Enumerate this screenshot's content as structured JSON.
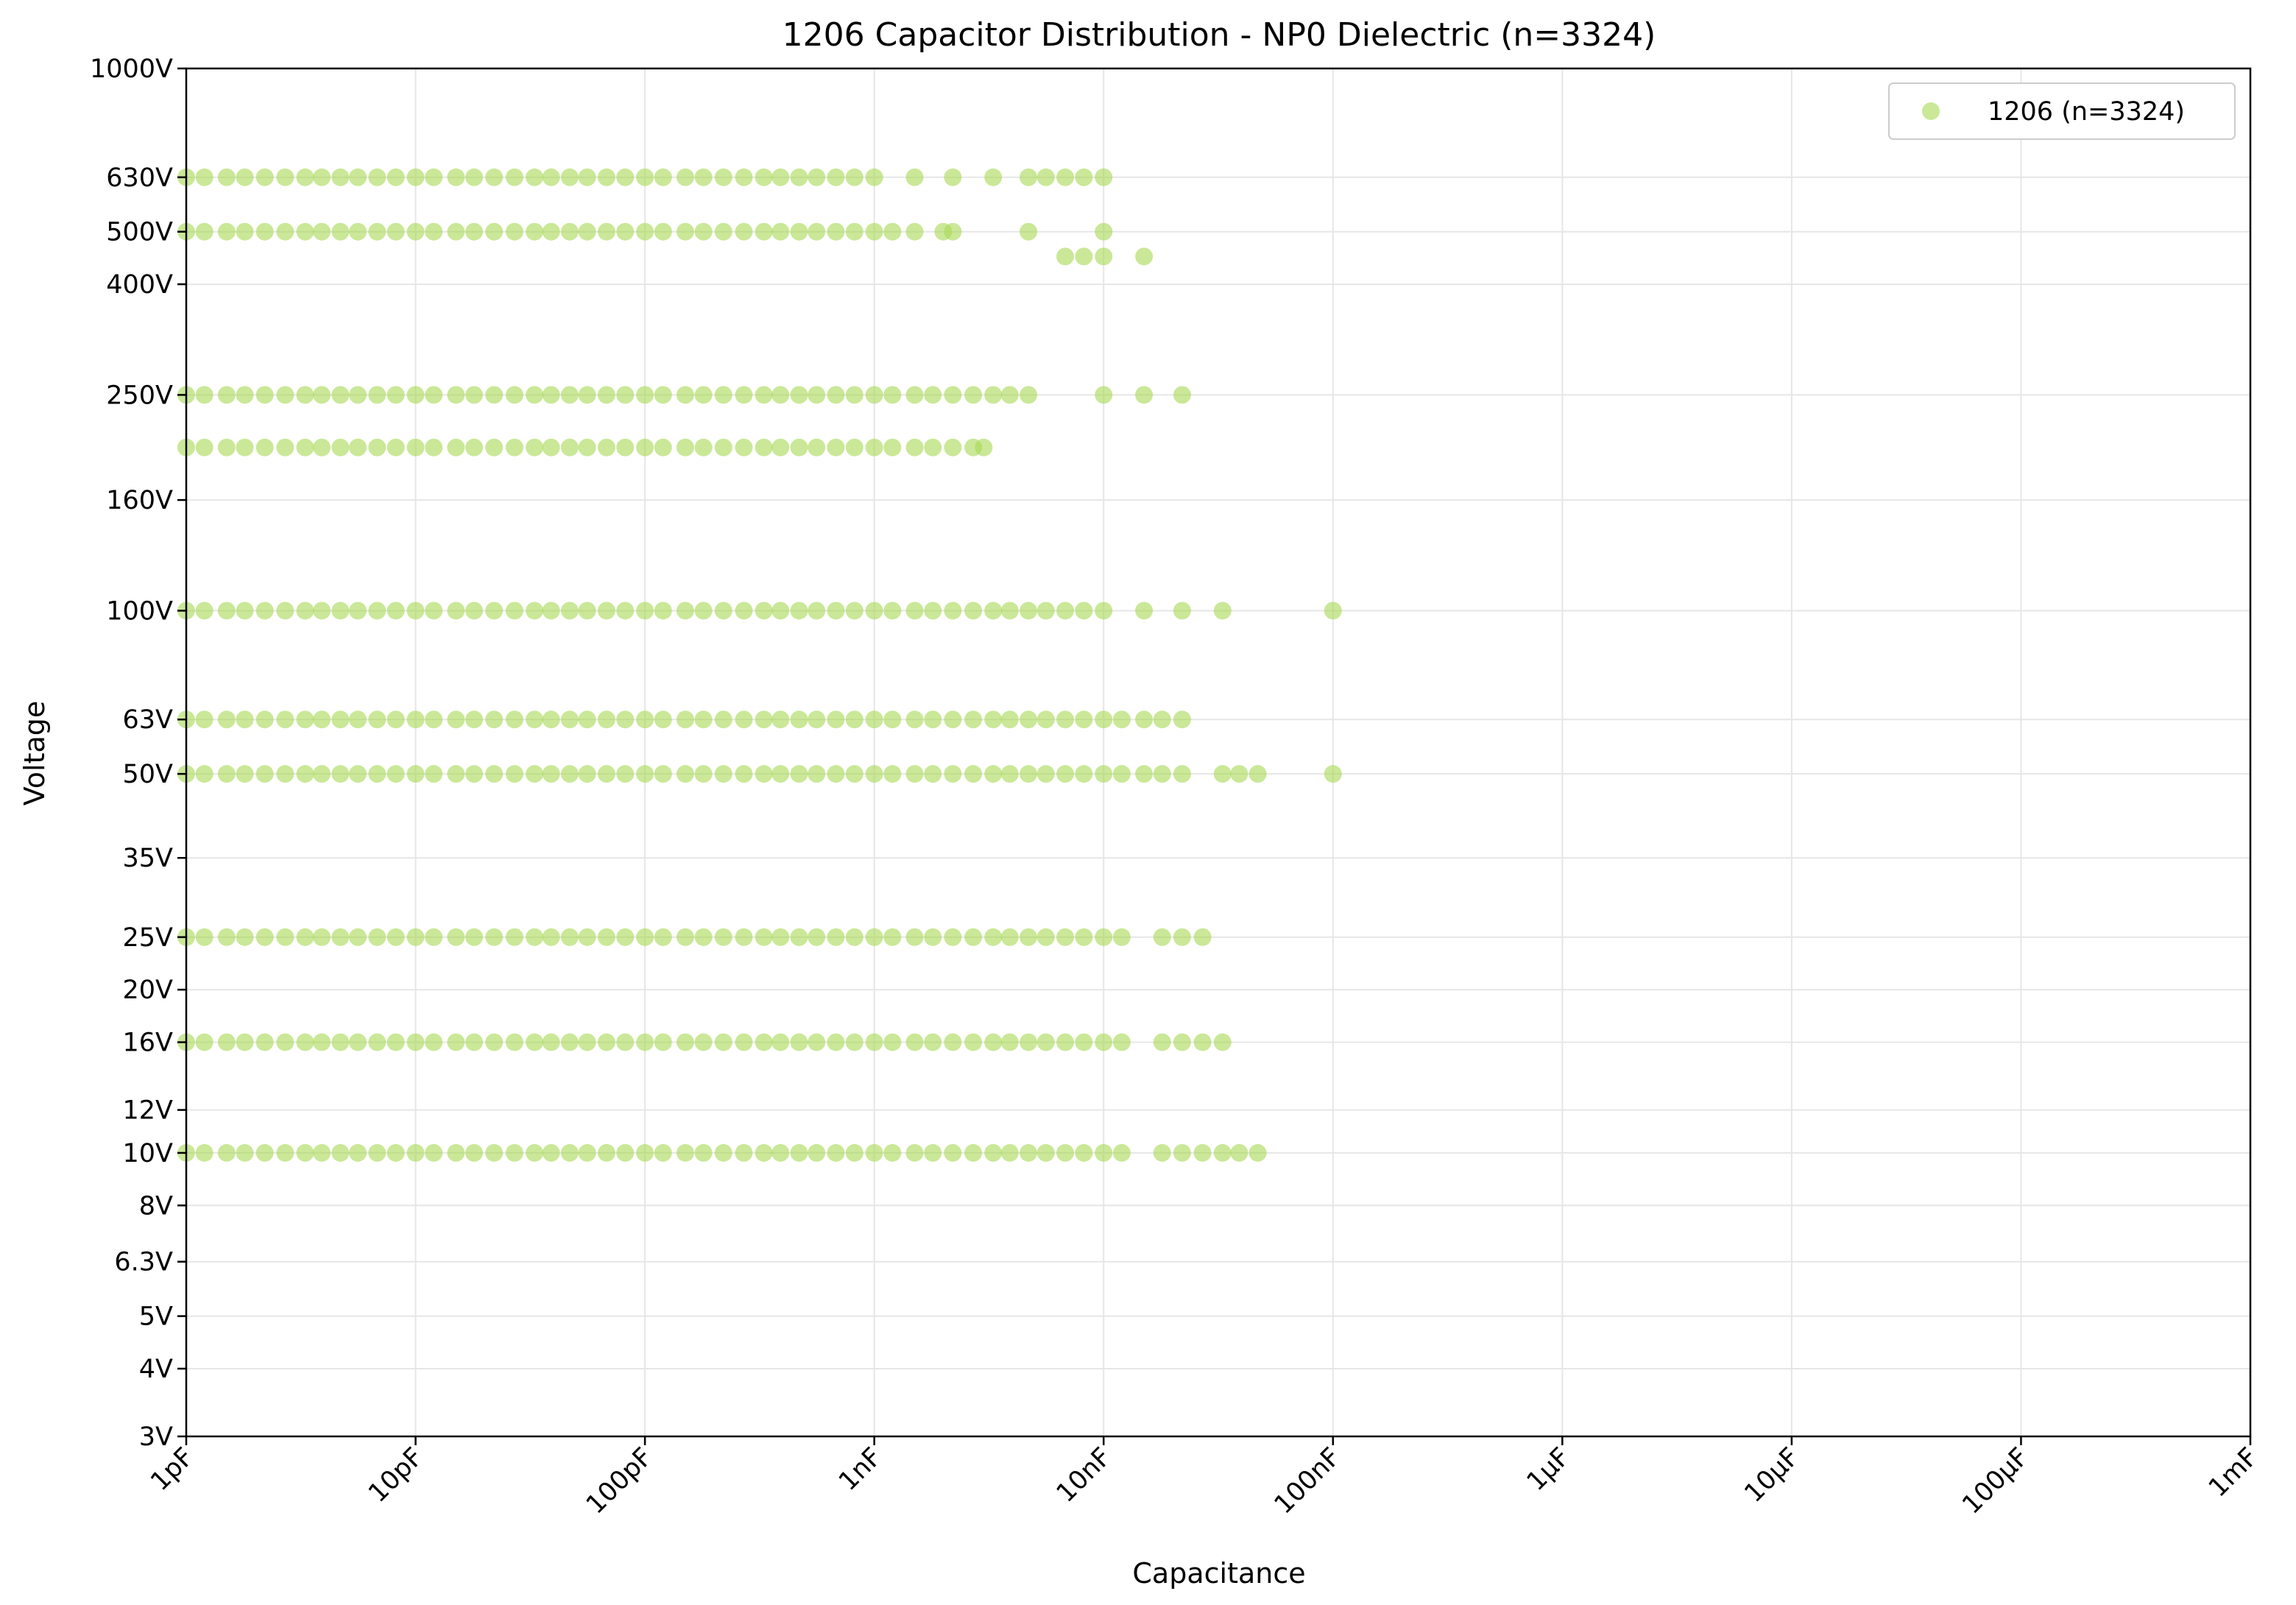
{
  "chart_data": {
    "type": "scatter",
    "title": "1206 Capacitor Distribution - NP0 Dielectric (n=3324)",
    "xlabel": "Capacitance",
    "ylabel": "Voltage",
    "x_scale": "log",
    "y_scale": "log",
    "xlim": [
      "1pF",
      "1mF"
    ],
    "ylim": [
      "3V",
      "1000V"
    ],
    "grid": true,
    "legend_position": "top-right",
    "x_ticks": [
      {
        "value_pF": 1,
        "label": "1pF"
      },
      {
        "value_pF": 10,
        "label": "10pF"
      },
      {
        "value_pF": 100,
        "label": "100pF"
      },
      {
        "value_pF": 1000,
        "label": "1nF"
      },
      {
        "value_pF": 10000,
        "label": "10nF"
      },
      {
        "value_pF": 100000,
        "label": "100nF"
      },
      {
        "value_pF": 1000000,
        "label": "1µF"
      },
      {
        "value_pF": 10000000,
        "label": "10µF"
      },
      {
        "value_pF": 100000000,
        "label": "100µF"
      },
      {
        "value_pF": 1000000000,
        "label": "1mF"
      }
    ],
    "y_ticks": [
      {
        "value_V": 3,
        "label": "3V"
      },
      {
        "value_V": 4,
        "label": "4V"
      },
      {
        "value_V": 5,
        "label": "5V"
      },
      {
        "value_V": 6.3,
        "label": "6.3V"
      },
      {
        "value_V": 8,
        "label": "8V"
      },
      {
        "value_V": 10,
        "label": "10V"
      },
      {
        "value_V": 12,
        "label": "12V"
      },
      {
        "value_V": 16,
        "label": "16V"
      },
      {
        "value_V": 20,
        "label": "20V"
      },
      {
        "value_V": 25,
        "label": "25V"
      },
      {
        "value_V": 35,
        "label": "35V"
      },
      {
        "value_V": 50,
        "label": "50V"
      },
      {
        "value_V": 63,
        "label": "63V"
      },
      {
        "value_V": 100,
        "label": "100V"
      },
      {
        "value_V": 160,
        "label": "160V"
      },
      {
        "value_V": 250,
        "label": "250V"
      },
      {
        "value_V": 400,
        "label": "400V"
      },
      {
        "value_V": 500,
        "label": "500V"
      },
      {
        "value_V": 630,
        "label": "630V"
      },
      {
        "value_V": 1000,
        "label": "1000V"
      }
    ],
    "series": [
      {
        "name": "1206 (n=3324)",
        "color": "#a6d854",
        "opacity": 0.6,
        "marker": "circle",
        "x_unit": "pF",
        "y_unit": "V",
        "rows": [
          {
            "voltage": 630,
            "capacitance_pF": [
              1,
              1.2,
              1.5,
              1.8,
              2.2,
              2.7,
              3.3,
              3.9,
              4.7,
              5.6,
              6.8,
              8.2,
              10,
              12,
              15,
              18,
              22,
              27,
              33,
              39,
              47,
              56,
              68,
              82,
              100,
              120,
              150,
              180,
              220,
              270,
              330,
              390,
              470,
              560,
              680,
              820,
              1000,
              1500,
              2200,
              3300,
              4700,
              5600,
              6800,
              8200,
              10000
            ]
          },
          {
            "voltage": 500,
            "capacitance_pF": [
              1,
              1.2,
              1.5,
              1.8,
              2.2,
              2.7,
              3.3,
              3.9,
              4.7,
              5.6,
              6.8,
              8.2,
              10,
              12,
              15,
              18,
              22,
              27,
              33,
              39,
              47,
              56,
              68,
              82,
              100,
              120,
              150,
              180,
              220,
              270,
              330,
              390,
              470,
              560,
              680,
              820,
              1000,
              1200,
              1500,
              2000,
              2200,
              4700,
              10000
            ]
          },
          {
            "voltage": 450,
            "capacitance_pF": [
              6800,
              8200,
              10000,
              15000
            ]
          },
          {
            "voltage": 250,
            "capacitance_pF": [
              1,
              1.2,
              1.5,
              1.8,
              2.2,
              2.7,
              3.3,
              3.9,
              4.7,
              5.6,
              6.8,
              8.2,
              10,
              12,
              15,
              18,
              22,
              27,
              33,
              39,
              47,
              56,
              68,
              82,
              100,
              120,
              150,
              180,
              220,
              270,
              330,
              390,
              470,
              560,
              680,
              820,
              1000,
              1200,
              1500,
              1800,
              2200,
              2700,
              3300,
              3900,
              4700,
              10000,
              15000,
              22000
            ]
          },
          {
            "voltage": 200,
            "capacitance_pF": [
              1,
              1.2,
              1.5,
              1.8,
              2.2,
              2.7,
              3.3,
              3.9,
              4.7,
              5.6,
              6.8,
              8.2,
              10,
              12,
              15,
              18,
              22,
              27,
              33,
              39,
              47,
              56,
              68,
              82,
              100,
              120,
              150,
              180,
              220,
              270,
              330,
              390,
              470,
              560,
              680,
              820,
              1000,
              1200,
              1500,
              1800,
              2200,
              2700,
              3000
            ]
          },
          {
            "voltage": 100,
            "capacitance_pF": [
              1,
              1.2,
              1.5,
              1.8,
              2.2,
              2.7,
              3.3,
              3.9,
              4.7,
              5.6,
              6.8,
              8.2,
              10,
              12,
              15,
              18,
              22,
              27,
              33,
              39,
              47,
              56,
              68,
              82,
              100,
              120,
              150,
              180,
              220,
              270,
              330,
              390,
              470,
              560,
              680,
              820,
              1000,
              1200,
              1500,
              1800,
              2200,
              2700,
              3300,
              3900,
              4700,
              5600,
              6800,
              8200,
              10000,
              15000,
              22000,
              33000,
              100000
            ]
          },
          {
            "voltage": 63,
            "capacitance_pF": [
              1,
              1.2,
              1.5,
              1.8,
              2.2,
              2.7,
              3.3,
              3.9,
              4.7,
              5.6,
              6.8,
              8.2,
              10,
              12,
              15,
              18,
              22,
              27,
              33,
              39,
              47,
              56,
              68,
              82,
              100,
              120,
              150,
              180,
              220,
              270,
              330,
              390,
              470,
              560,
              680,
              820,
              1000,
              1200,
              1500,
              1800,
              2200,
              2700,
              3300,
              3900,
              4700,
              5600,
              6800,
              8200,
              10000,
              12000,
              15000,
              18000,
              22000
            ]
          },
          {
            "voltage": 50,
            "capacitance_pF": [
              1,
              1.2,
              1.5,
              1.8,
              2.2,
              2.7,
              3.3,
              3.9,
              4.7,
              5.6,
              6.8,
              8.2,
              10,
              12,
              15,
              18,
              22,
              27,
              33,
              39,
              47,
              56,
              68,
              82,
              100,
              120,
              150,
              180,
              220,
              270,
              330,
              390,
              470,
              560,
              680,
              820,
              1000,
              1200,
              1500,
              1800,
              2200,
              2700,
              3300,
              3900,
              4700,
              5600,
              6800,
              8200,
              10000,
              12000,
              15000,
              18000,
              22000,
              33000,
              39000,
              47000,
              100000
            ]
          },
          {
            "voltage": 25,
            "capacitance_pF": [
              1,
              1.2,
              1.5,
              1.8,
              2.2,
              2.7,
              3.3,
              3.9,
              4.7,
              5.6,
              6.8,
              8.2,
              10,
              12,
              15,
              18,
              22,
              27,
              33,
              39,
              47,
              56,
              68,
              82,
              100,
              120,
              150,
              180,
              220,
              270,
              330,
              390,
              470,
              560,
              680,
              820,
              1000,
              1200,
              1500,
              1800,
              2200,
              2700,
              3300,
              3900,
              4700,
              5600,
              6800,
              8200,
              10000,
              12000,
              18000,
              22000,
              27000
            ]
          },
          {
            "voltage": 16,
            "capacitance_pF": [
              1,
              1.2,
              1.5,
              1.8,
              2.2,
              2.7,
              3.3,
              3.9,
              4.7,
              5.6,
              6.8,
              8.2,
              10,
              12,
              15,
              18,
              22,
              27,
              33,
              39,
              47,
              56,
              68,
              82,
              100,
              120,
              150,
              180,
              220,
              270,
              330,
              390,
              470,
              560,
              680,
              820,
              1000,
              1200,
              1500,
              1800,
              2200,
              2700,
              3300,
              3900,
              4700,
              5600,
              6800,
              8200,
              10000,
              12000,
              18000,
              22000,
              27000,
              33000
            ]
          },
          {
            "voltage": 10,
            "capacitance_pF": [
              1,
              1.2,
              1.5,
              1.8,
              2.2,
              2.7,
              3.3,
              3.9,
              4.7,
              5.6,
              6.8,
              8.2,
              10,
              12,
              15,
              18,
              22,
              27,
              33,
              39,
              47,
              56,
              68,
              82,
              100,
              120,
              150,
              180,
              220,
              270,
              330,
              390,
              470,
              560,
              680,
              820,
              1000,
              1200,
              1500,
              1800,
              2200,
              2700,
              3300,
              3900,
              4700,
              5600,
              6800,
              8200,
              10000,
              12000,
              18000,
              22000,
              27000,
              33000,
              39000,
              47000
            ]
          }
        ]
      }
    ]
  }
}
